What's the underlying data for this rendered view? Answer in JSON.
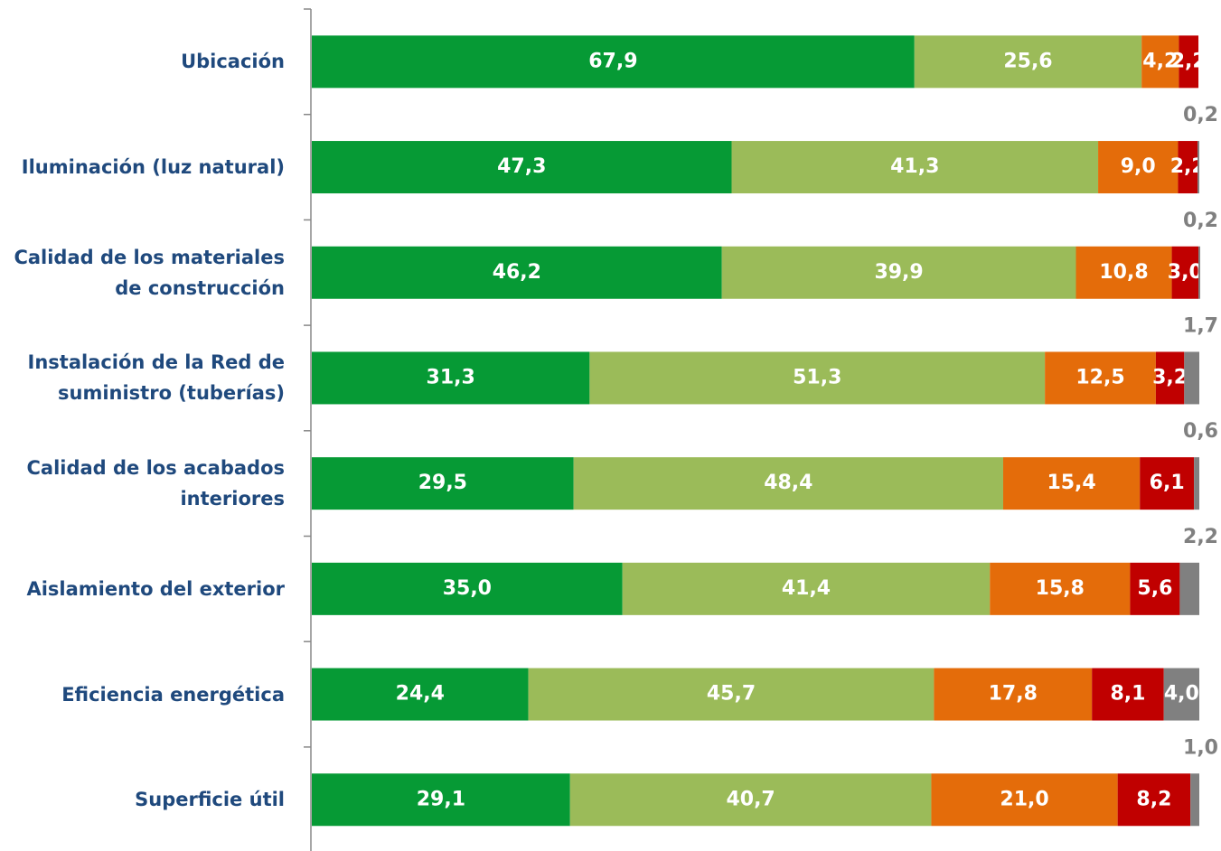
{
  "chart_data": {
    "type": "stacked-bar-horizontal",
    "categories": [
      "Ubicación",
      "Iluminación (luz natural)",
      "Calidad de los materiales\nde construcción",
      "Instalación de la Red de\nsuministro (tuberías)",
      "Calidad de los acabados\ninteriores",
      "Aislamiento del exterior",
      "Eficiencia energética",
      "Superficie útil"
    ],
    "xlim": [
      0,
      100
    ],
    "series": [
      {
        "color": "#069a35",
        "values": [
          67.9,
          47.3,
          46.2,
          31.3,
          29.5,
          35.0,
          24.4,
          29.1
        ],
        "value_labels": [
          "67,9",
          "47,3",
          "46,2",
          "31,3",
          "29,5",
          "35,0",
          "24,4",
          "29,1"
        ]
      },
      {
        "color": "#9bbb59",
        "values": [
          25.6,
          41.3,
          39.9,
          51.3,
          48.4,
          41.4,
          45.7,
          40.7
        ],
        "value_labels": [
          "25,6",
          "41,3",
          "39,9",
          "51,3",
          "48,4",
          "41,4",
          "45,7",
          "40,7"
        ]
      },
      {
        "color": "#e46c0a",
        "values": [
          4.2,
          9.0,
          10.8,
          12.5,
          15.4,
          15.8,
          17.8,
          21.0
        ],
        "value_labels": [
          "4,2",
          "9,0",
          "10,8",
          "12,5",
          "15,4",
          "15,8",
          "17,8",
          "21,0"
        ]
      },
      {
        "color": "#c00000",
        "values": [
          2.2,
          2.2,
          3.0,
          3.2,
          6.1,
          5.6,
          8.1,
          8.2
        ],
        "value_labels": [
          "2,2",
          "2,2",
          "3,0",
          "3,2",
          "6,1",
          "5,6",
          "8,1",
          "8,2"
        ]
      },
      {
        "color": "#808080",
        "values": [
          null,
          0.2,
          0.2,
          1.7,
          0.6,
          2.2,
          4.0,
          1.0
        ],
        "value_labels": [
          null,
          "0,2",
          "0,2",
          "1,7",
          "0,6",
          "2,2",
          "4,0",
          "1,0"
        ]
      }
    ]
  }
}
